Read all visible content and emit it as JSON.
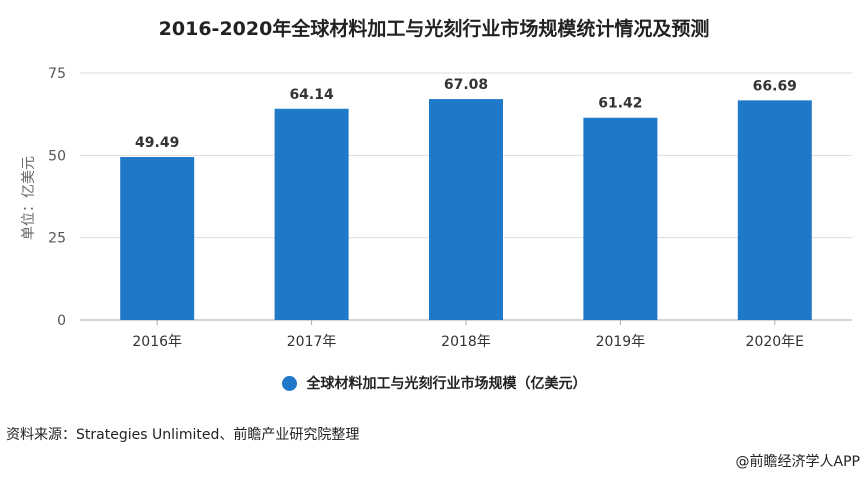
{
  "chart_data": {
    "type": "bar",
    "title": "2016-2020年全球材料加工与光刻行业市场规模统计情况及预测",
    "ylabel": "单位：亿美元",
    "xlabel": "",
    "categories": [
      "2016年",
      "2017年",
      "2018年",
      "2019年",
      "2020年E"
    ],
    "series": [
      {
        "name": "全球材料加工与光刻行业市场规模（亿美元）",
        "values": [
          49.49,
          64.14,
          67.08,
          61.42,
          66.69
        ],
        "value_labels": [
          "49.49",
          "64.14",
          "67.08",
          "61.42",
          "66.69"
        ],
        "color": "#1f78c8"
      }
    ],
    "ylim": [
      0,
      75
    ],
    "yticks": [
      0,
      25,
      50,
      75
    ],
    "ytick_labels": [
      "0",
      "25",
      "50",
      "75"
    ],
    "grid": true,
    "legend_position": "bottom"
  },
  "footer": {
    "source": "资料来源：Strategies Unlimited、前瞻产业研究院整理",
    "credit": "@前瞻经济学人APP"
  }
}
